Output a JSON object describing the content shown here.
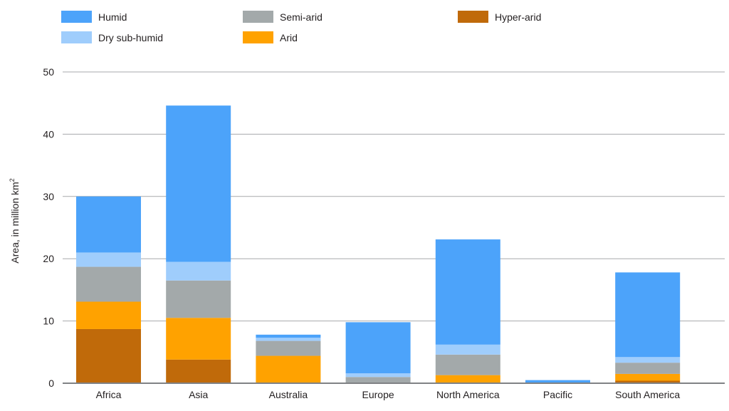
{
  "chart_data": {
    "type": "bar",
    "stacked": true,
    "categories": [
      "Africa",
      "Asia",
      "Australia",
      "Europe",
      "North America",
      "Pacific",
      "South America"
    ],
    "series": [
      {
        "name": "Hyper-arid",
        "color": "#c06a0a",
        "values": [
          8.7,
          3.8,
          0.0,
          0.0,
          0.0,
          0.0,
          0.4
        ]
      },
      {
        "name": "Arid",
        "color": "#ffa200",
        "values": [
          4.4,
          6.7,
          4.4,
          0.0,
          1.3,
          0.0,
          1.1
        ]
      },
      {
        "name": "Semi-arid",
        "color": "#a3a9aa",
        "values": [
          5.6,
          6.0,
          2.4,
          1.0,
          3.3,
          0.0,
          1.8
        ]
      },
      {
        "name": "Dry sub-humid",
        "color": "#9fcdfc",
        "values": [
          2.3,
          3.0,
          0.5,
          0.6,
          1.6,
          0.0,
          0.9
        ]
      },
      {
        "name": "Humid",
        "color": "#4ca3fa",
        "values": [
          9.0,
          25.1,
          0.5,
          8.2,
          16.9,
          0.5,
          13.6
        ]
      }
    ],
    "legend_order": [
      "Humid",
      "Semi-arid",
      "Hyper-arid",
      "Dry sub-humid",
      "Arid"
    ],
    "legend_position": "top",
    "ylabel_main": "Area, in million km",
    "ylabel_sup": "2",
    "ylim": [
      0,
      50
    ],
    "yticks": [
      0,
      10,
      20,
      30,
      40,
      50
    ],
    "grid": true
  }
}
